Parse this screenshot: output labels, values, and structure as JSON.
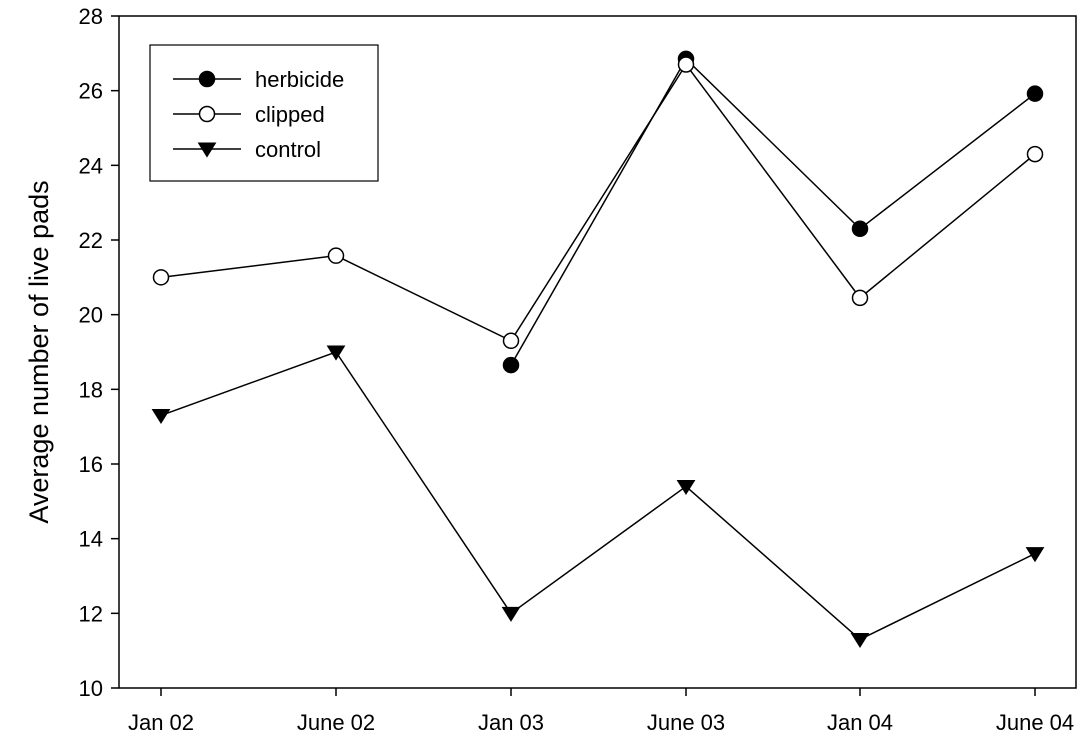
{
  "chart_data": {
    "type": "line",
    "title": "",
    "xlabel": "",
    "ylabel": "Average number of live pads",
    "categories": [
      "Jan 02",
      "June 02",
      "Jan 03",
      "June 03",
      "Jan 04",
      "June 04"
    ],
    "ylim": [
      10,
      28
    ],
    "yticks": [
      10,
      12,
      14,
      16,
      18,
      20,
      22,
      24,
      26,
      28
    ],
    "grid": false,
    "legend_position": "top-left",
    "series": [
      {
        "name": "herbicide",
        "marker": "filled-circle",
        "values": [
          null,
          null,
          18.65,
          26.85,
          22.3,
          25.92
        ]
      },
      {
        "name": "clipped",
        "marker": "open-circle",
        "values": [
          21.0,
          21.58,
          19.3,
          26.7,
          20.45,
          24.3
        ]
      },
      {
        "name": "control",
        "marker": "filled-triangle-down",
        "values": [
          17.3,
          19.0,
          12.0,
          15.4,
          11.3,
          13.6
        ]
      }
    ]
  }
}
